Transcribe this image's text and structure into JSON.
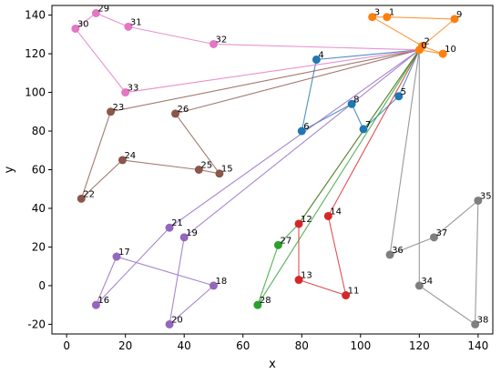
{
  "chart_data": {
    "type": "line",
    "xlabel": "x",
    "ylabel": "y",
    "xlim": [
      -5,
      145
    ],
    "ylim": [
      -25,
      145
    ],
    "xticks": [
      0,
      20,
      40,
      60,
      80,
      100,
      120,
      140
    ],
    "yticks": [
      -20,
      0,
      20,
      40,
      60,
      80,
      100,
      120,
      140
    ],
    "grid": false,
    "legend": false,
    "points": {
      "0": [
        120,
        122
      ],
      "1": [
        109,
        139
      ],
      "2": [
        121,
        124
      ],
      "3": [
        104,
        139
      ],
      "4": [
        85,
        117
      ],
      "5": [
        113,
        98
      ],
      "6": [
        80,
        80
      ],
      "7": [
        101,
        81
      ],
      "8": [
        97,
        94
      ],
      "9": [
        132,
        138
      ],
      "10": [
        128,
        120
      ],
      "11": [
        95,
        -5
      ],
      "12": [
        79,
        32
      ],
      "13": [
        79,
        3
      ],
      "14": [
        89,
        36
      ],
      "15": [
        52,
        58
      ],
      "16": [
        10,
        -10
      ],
      "17": [
        17,
        15
      ],
      "18": [
        50,
        0
      ],
      "19": [
        40,
        25
      ],
      "20": [
        35,
        -20
      ],
      "21": [
        35,
        30
      ],
      "22": [
        5,
        45
      ],
      "23": [
        15,
        90
      ],
      "24": [
        19,
        65
      ],
      "25": [
        45,
        60
      ],
      "26": [
        37,
        89
      ],
      "27": [
        72,
        21
      ],
      "28": [
        65,
        -10
      ],
      "29": [
        10,
        141
      ],
      "30": [
        3,
        133
      ],
      "31": [
        21,
        134
      ],
      "32": [
        50,
        125
      ],
      "33": [
        20,
        100
      ],
      "34": [
        120,
        0
      ],
      "35": [
        140,
        44
      ],
      "36": [
        110,
        16
      ],
      "37": [
        125,
        25
      ],
      "38": [
        139,
        -20
      ]
    },
    "series": [
      {
        "color": "#ff7f0e",
        "route": [
          0,
          2,
          9,
          1,
          3,
          2,
          10,
          0
        ]
      },
      {
        "color": "#1f77b4",
        "route": [
          0,
          4,
          6,
          8,
          7,
          5,
          0
        ]
      },
      {
        "color": "#d62728",
        "route": [
          0,
          14,
          11,
          13,
          12,
          0
        ]
      },
      {
        "color": "#2ca02c",
        "route": [
          0,
          12,
          27,
          28,
          0
        ]
      },
      {
        "color": "#9467bd",
        "route": [
          0,
          19,
          20,
          18,
          17,
          16,
          21,
          0
        ]
      },
      {
        "color": "#8c564b",
        "route": [
          0,
          23,
          22,
          24,
          25,
          15,
          26,
          0
        ]
      },
      {
        "color": "#e377c2",
        "route": [
          0,
          32,
          31,
          29,
          30,
          33,
          0
        ]
      },
      {
        "color": "#7f7f7f",
        "route": [
          0,
          34,
          38,
          35,
          37,
          36,
          0
        ]
      }
    ]
  }
}
